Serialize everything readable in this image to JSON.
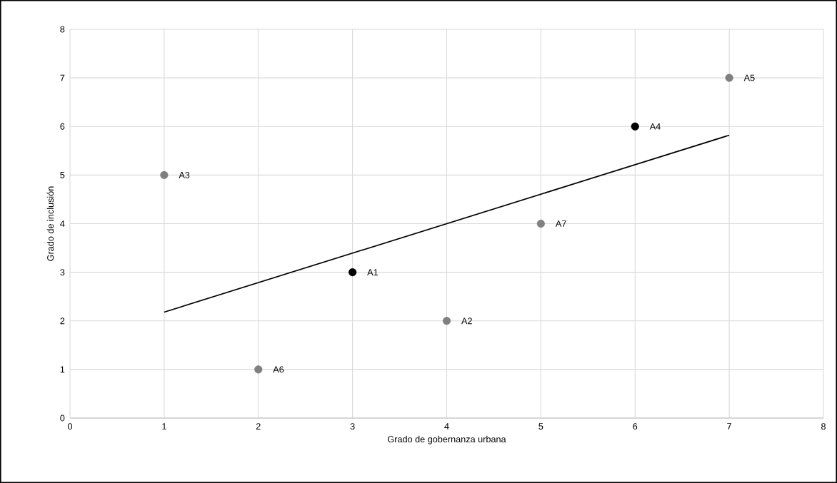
{
  "chart_data": {
    "type": "scatter",
    "xlabel": "Grado de gobernanza urbana",
    "ylabel": "Grado de inclusión",
    "xlim": [
      0,
      8
    ],
    "ylim": [
      0,
      8
    ],
    "xticks": [
      0,
      1,
      2,
      3,
      4,
      5,
      6,
      7,
      8
    ],
    "yticks": [
      0,
      1,
      2,
      3,
      4,
      5,
      6,
      7,
      8
    ],
    "grid": true,
    "marker": "circle",
    "series": [
      {
        "x": [
          3,
          4,
          1,
          6,
          7,
          2,
          5
        ],
        "values": [
          3,
          2,
          5,
          6,
          7,
          1,
          4
        ],
        "colors": [
          "#000000",
          "#808080",
          "#808080",
          "#000000",
          "#808080",
          "#808080",
          "#808080"
        ]
      },
      {
        "type": "line",
        "x": [
          1,
          7
        ],
        "values": [
          2.18,
          5.82
        ],
        "color": "#000000",
        "marker": "none"
      }
    ],
    "annotations": [
      {
        "text": "A1",
        "x": 3,
        "y": 3
      },
      {
        "text": "A2",
        "x": 4,
        "y": 2
      },
      {
        "text": "A3",
        "x": 1,
        "y": 5
      },
      {
        "text": "A4",
        "x": 6,
        "y": 6
      },
      {
        "text": "A5",
        "x": 7,
        "y": 7
      },
      {
        "text": "A6",
        "x": 2,
        "y": 1
      },
      {
        "text": "A7",
        "x": 5,
        "y": 4
      }
    ]
  }
}
